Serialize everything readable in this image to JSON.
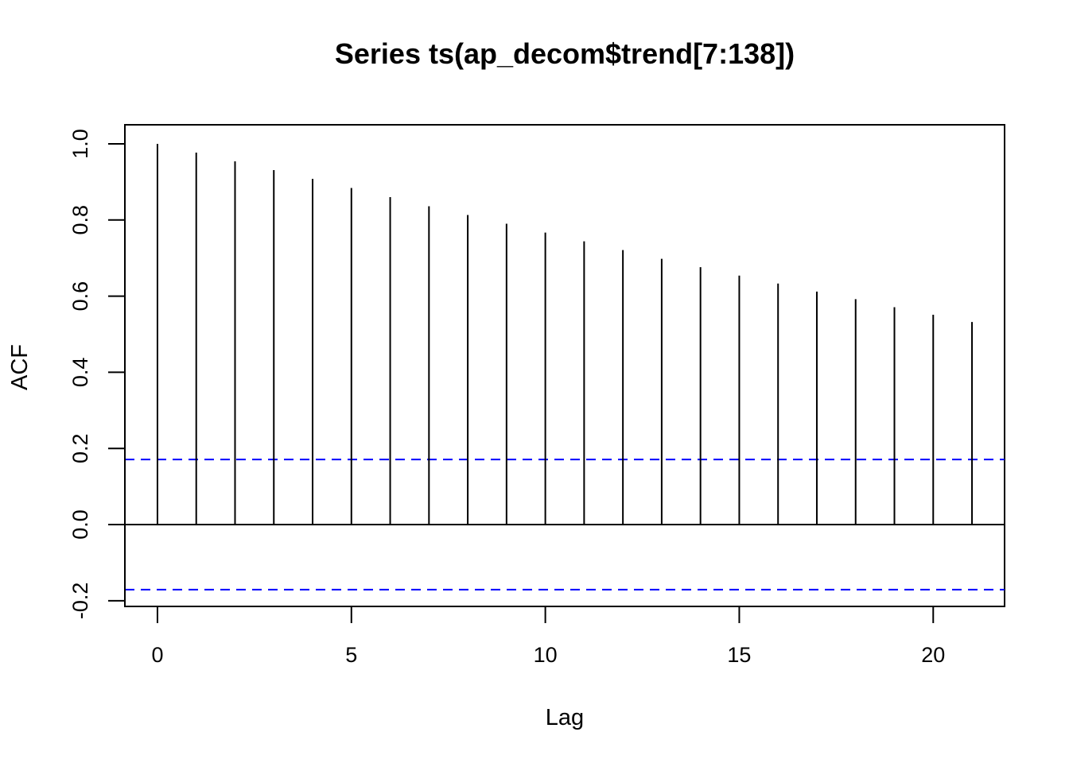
{
  "chart_data": {
    "type": "bar",
    "title": "Series  ts(ap_decom$trend[7:138])",
    "xlabel": "Lag",
    "ylabel": "ACF",
    "xlim": [
      -0.84,
      21.84
    ],
    "ylim": [
      -0.215,
      1.05
    ],
    "xticks": [
      "0",
      "5",
      "10",
      "15",
      "20"
    ],
    "yticks": [
      "-0.2",
      "0.0",
      "0.2",
      "0.4",
      "0.6",
      "0.8",
      "1.0"
    ],
    "x": [
      0,
      1,
      2,
      3,
      4,
      5,
      6,
      7,
      8,
      9,
      10,
      11,
      12,
      13,
      14,
      15,
      16,
      17,
      18,
      19,
      20,
      21
    ],
    "values": [
      1.0,
      0.977,
      0.954,
      0.931,
      0.908,
      0.884,
      0.86,
      0.836,
      0.813,
      0.79,
      0.767,
      0.744,
      0.721,
      0.698,
      0.676,
      0.654,
      0.633,
      0.612,
      0.592,
      0.571,
      0.551,
      0.532
    ],
    "confidence_band": [
      0.171,
      -0.171
    ],
    "colors": {
      "stems": "#000000",
      "band": "#0000ff",
      "axis": "#000000"
    },
    "grid": false,
    "legend": "none"
  }
}
